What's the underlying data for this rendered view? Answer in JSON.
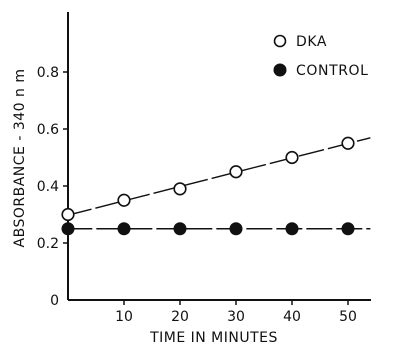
{
  "chart_data": {
    "type": "line",
    "title": "",
    "xlabel": "TIME IN MINUTES",
    "ylabel": "ABSORBANCE - 340 n m",
    "xlim": [
      0,
      55
    ],
    "ylim": [
      0,
      1.0
    ],
    "x_ticks": [
      10,
      20,
      30,
      40,
      50
    ],
    "x_tick_labels": [
      "10",
      "20",
      "30",
      "40",
      "50"
    ],
    "y_ticks": [
      0,
      0.2,
      0.4,
      0.6,
      0.8
    ],
    "y_tick_labels": [
      "0",
      "0.2",
      "0.4",
      "0.6",
      "0.8"
    ],
    "grid": false,
    "legend_position": "top-right",
    "series": [
      {
        "name": "DKA",
        "marker": "open-circle",
        "line_style": "dashed",
        "x": [
          0,
          10,
          20,
          30,
          40,
          50
        ],
        "y": [
          0.3,
          0.35,
          0.39,
          0.45,
          0.5,
          0.55
        ]
      },
      {
        "name": "CONTROL",
        "marker": "filled-circle",
        "line_style": "dashed",
        "x": [
          0,
          10,
          20,
          30,
          40,
          50
        ],
        "y": [
          0.25,
          0.25,
          0.25,
          0.25,
          0.25,
          0.25
        ]
      }
    ],
    "colors": {
      "ink": "#111111",
      "background": "#ffffff"
    }
  }
}
